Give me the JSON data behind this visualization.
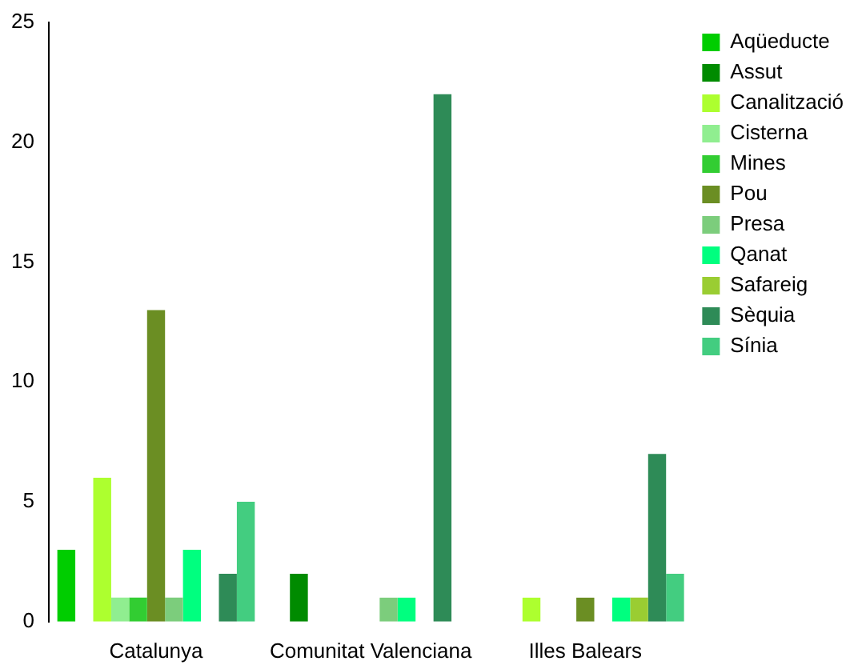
{
  "chart_data": {
    "type": "bar",
    "categories": [
      "Catalunya",
      "Comunitat Valenciana",
      "Illes Balears"
    ],
    "series": [
      {
        "name": "Aqüeducte",
        "color": "#00cd00",
        "values": [
          3,
          0,
          0
        ]
      },
      {
        "name": "Assut",
        "color": "#008b00",
        "values": [
          0,
          2,
          0
        ]
      },
      {
        "name": "Canalització",
        "color": "#adff2f",
        "values": [
          6,
          0,
          1
        ]
      },
      {
        "name": "Cisterna",
        "color": "#90ee90",
        "values": [
          1,
          0,
          0
        ]
      },
      {
        "name": "Mines",
        "color": "#32cd32",
        "values": [
          1,
          0,
          0
        ]
      },
      {
        "name": "Pou",
        "color": "#6b8e23",
        "values": [
          13,
          0,
          1
        ]
      },
      {
        "name": "Presa",
        "color": "#7ccd7c",
        "values": [
          1,
          1,
          0
        ]
      },
      {
        "name": "Qanat",
        "color": "#00ff7f",
        "values": [
          3,
          1,
          1
        ]
      },
      {
        "name": "Safareig",
        "color": "#9acd32",
        "values": [
          0,
          0,
          1
        ]
      },
      {
        "name": "Sèquia",
        "color": "#2e8b57",
        "values": [
          2,
          22,
          7
        ]
      },
      {
        "name": "Sínia",
        "color": "#43cd80",
        "values": [
          5,
          0,
          2
        ]
      }
    ],
    "ylim": [
      0,
      25
    ],
    "yticks": [
      0,
      5,
      10,
      15,
      20,
      25
    ],
    "grid": false,
    "legend": "top right"
  }
}
